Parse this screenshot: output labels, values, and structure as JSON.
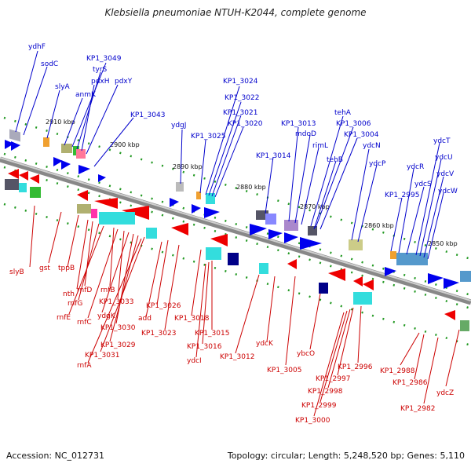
{
  "title": "Klebsiella pneumoniae NTUH-K2044, complete genome",
  "footer": {
    "accession": "Accession: NC_012731",
    "stats": "Topology: circular; Length: 5,248,520 bp; Genes: 5,110"
  },
  "colors": {
    "positive": "#0000cc",
    "negative": "#cc0000",
    "axis": "#888888",
    "tick": "#229922"
  },
  "kbp_ticks": [
    "2910 kbp",
    "2900 kbp",
    "2890 kbp",
    "2880 kbp",
    "2870 kbp",
    "2860 kbp",
    "2850 kbp"
  ],
  "top_labels": [
    "ydhF",
    "sodC",
    "slyA",
    "anmK",
    "KP1_3049",
    "tyrS",
    "pdxH",
    "pdxY",
    "KP1_3043",
    "ydgJ",
    "KP1_3025",
    "KP1_3024",
    "KP1_3022",
    "KP1_3021",
    "KP1_3020",
    "KP1_3014",
    "KP1_3013",
    "mdoD",
    "rimL",
    "tehA",
    "KP1_3006",
    "KP1_3004",
    "tehB",
    "ydcN",
    "ydcP",
    "ydcT",
    "ydcU",
    "ydcR",
    "ydcS",
    "ydcV",
    "KP1_2995",
    "ydcW"
  ],
  "bottom_labels": [
    "slyB",
    "gst",
    "tppB",
    "nth",
    "rnfD",
    "rnfG",
    "rnfE",
    "rnfB",
    "rnfC",
    "KP1_3033",
    "ydgK",
    "KP1_3030",
    "KP1_3029",
    "KP1_3031",
    "rnfA",
    "KP1_3026",
    "add",
    "KP1_3023",
    "KP1_3018",
    "KP1_3015",
    "KP1_3016",
    "ydcI",
    "KP1_3012",
    "ydcK",
    "KP1_3005",
    "ybcO",
    "KP1_2996",
    "KP1_2997",
    "KP1_2998",
    "KP1_2999",
    "KP1_3000",
    "KP1_2988",
    "KP1_2986",
    "KP1_2982",
    "ydcZ"
  ]
}
